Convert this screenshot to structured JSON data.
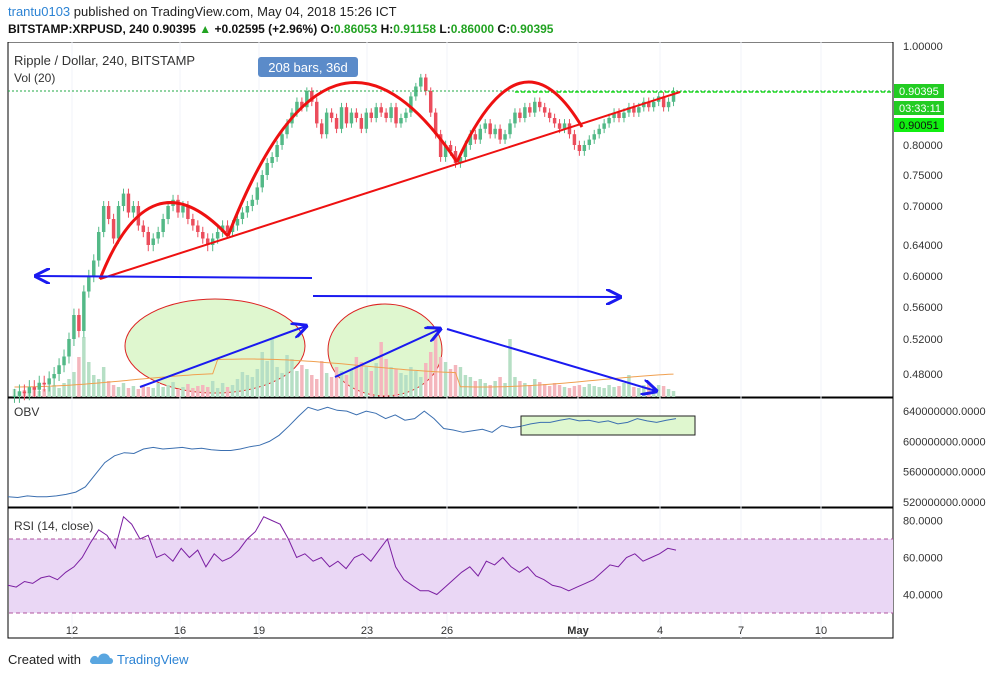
{
  "header": {
    "user": "trantu0103",
    "published_text": "published on TradingView.com, May 04, 2018 15:26 ICT",
    "symbol": "BITSTAMP:XRPUSD, 240",
    "last": "0.90395",
    "arrow": "▲",
    "change": "+0.02595 (+2.96%)",
    "o_label": "O:",
    "o_val": "0.86053",
    "h_label": "H:",
    "h_val": "0.91158",
    "l_label": "L:",
    "l_val": "0.86000",
    "c_label": "C:",
    "c_val": "0.90395"
  },
  "colors": {
    "up": "#53b987",
    "down": "#eb4d5c",
    "drawing": "#ee1111",
    "arrow": "#1a1af0",
    "obv": "#3b6fb0",
    "rsi": "#7b1fa2",
    "rsi_band": "#ead7f5",
    "ellipse_fill": "#dff7cf",
    "price_badge": "#22cc22",
    "tooltip_bg": "#5b8bc9"
  },
  "chart_data": [
    {
      "type": "candlestick",
      "title": "Ripple / Dollar, 240, BITSTAMP",
      "volume_label": "Vol (20)",
      "y_ticks": [
        "1.00000",
        "0.90000",
        "0.80000",
        "0.75000",
        "0.70000",
        "0.64000",
        "0.60000",
        "0.56000",
        "0.52000",
        "0.48000"
      ],
      "price_badges": {
        "last": "0.90395",
        "countdown": "03:33:11",
        "prev": "0.90051"
      },
      "x_ticks": [
        "12",
        "16",
        "19",
        "23",
        "26",
        "May",
        "4",
        "7",
        "10"
      ],
      "annotation": "208 bars, 36d",
      "ohlc_path": [
        0.455,
        0.46,
        0.458,
        0.465,
        0.462,
        0.47,
        0.468,
        0.475,
        0.48,
        0.49,
        0.5,
        0.52,
        0.55,
        0.53,
        0.58,
        0.6,
        0.62,
        0.66,
        0.7,
        0.68,
        0.65,
        0.7,
        0.72,
        0.69,
        0.7,
        0.67,
        0.66,
        0.64,
        0.65,
        0.66,
        0.68,
        0.7,
        0.71,
        0.69,
        0.7,
        0.68,
        0.67,
        0.66,
        0.65,
        0.64,
        0.65,
        0.66,
        0.67,
        0.66,
        0.67,
        0.68,
        0.69,
        0.7,
        0.71,
        0.73,
        0.75,
        0.77,
        0.78,
        0.8,
        0.82,
        0.84,
        0.86,
        0.88,
        0.87,
        0.9,
        0.88,
        0.84,
        0.82,
        0.86,
        0.85,
        0.83,
        0.87,
        0.84,
        0.86,
        0.85,
        0.83,
        0.86,
        0.85,
        0.87,
        0.86,
        0.85,
        0.87,
        0.84,
        0.85,
        0.86,
        0.89,
        0.91,
        0.93,
        0.9,
        0.86,
        0.82,
        0.78,
        0.8,
        0.79,
        0.77,
        0.78,
        0.8,
        0.82,
        0.81,
        0.83,
        0.84,
        0.82,
        0.83,
        0.81,
        0.82,
        0.84,
        0.86,
        0.85,
        0.87,
        0.86,
        0.88,
        0.87,
        0.86,
        0.85,
        0.84,
        0.83,
        0.84,
        0.82,
        0.8,
        0.79,
        0.8,
        0.81,
        0.82,
        0.83,
        0.84,
        0.85,
        0.86,
        0.85,
        0.86,
        0.87,
        0.86,
        0.87,
        0.88,
        0.87,
        0.88,
        0.89,
        0.87,
        0.88,
        0.9
      ]
    },
    {
      "type": "line",
      "title": "OBV",
      "y_ticks": [
        "640000000.0000",
        "600000000.0000",
        "560000000.0000",
        "520000000.0000"
      ],
      "values": [
        527,
        526,
        528,
        527,
        527,
        528,
        530,
        533,
        540,
        556,
        572,
        581,
        585,
        584,
        590,
        592,
        590,
        591,
        592,
        590,
        591,
        589,
        588,
        588,
        590,
        593,
        595,
        600,
        608,
        620,
        633,
        645,
        641,
        645,
        641,
        640,
        635,
        640,
        637,
        630,
        635,
        628,
        630,
        640,
        630,
        617,
        615,
        612,
        614,
        616,
        612,
        621,
        618,
        620,
        623,
        625,
        625,
        628,
        630,
        627,
        628,
        625,
        627,
        623,
        625,
        630,
        627,
        625,
        628,
        630
      ]
    },
    {
      "type": "line",
      "title": "RSI (14, close)",
      "y_ticks": [
        "80.0000",
        "60.0000",
        "40.0000"
      ],
      "band": [
        30,
        70
      ],
      "values": [
        45,
        44,
        47,
        46,
        49,
        50,
        48,
        52,
        55,
        60,
        68,
        75,
        72,
        65,
        82,
        78,
        70,
        72,
        60,
        62,
        58,
        65,
        60,
        64,
        55,
        62,
        58,
        60,
        64,
        70,
        74,
        82,
        80,
        78,
        70,
        60,
        62,
        58,
        60,
        55,
        58,
        54,
        60,
        62,
        58,
        64,
        70,
        55,
        48,
        45,
        42,
        42,
        40,
        44,
        48,
        52,
        55,
        50,
        58,
        56,
        60,
        55,
        52,
        55,
        50,
        48,
        45,
        44,
        42,
        44,
        46,
        48,
        52,
        56,
        55,
        60,
        62,
        58,
        60,
        62,
        65,
        64
      ]
    }
  ]
}
